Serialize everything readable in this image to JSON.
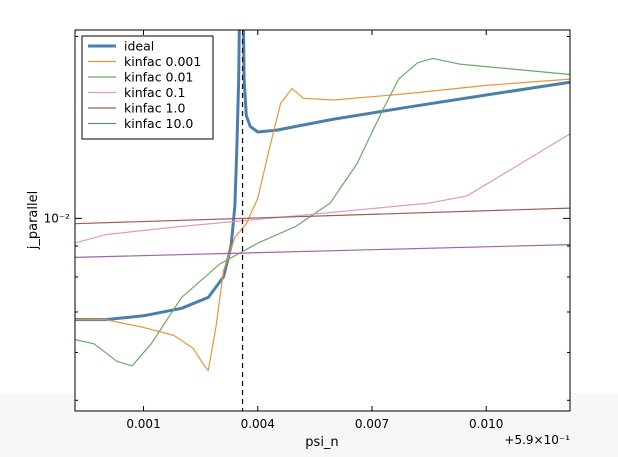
{
  "chart_data": {
    "type": "line",
    "title": "",
    "xlabel": "psi_n",
    "ylabel": "j_parallel",
    "x_offset_label": "+5.9×10⁻¹",
    "xlim": [
      -0.0008,
      0.0122
    ],
    "ylim": [
      0.0048,
      0.0205
    ],
    "yscale": "log",
    "grid": false,
    "legend_position": "top-left",
    "x_ticks": [
      {
        "value": 0.001,
        "label": "0.001"
      },
      {
        "value": 0.004,
        "label": "0.004"
      },
      {
        "value": 0.007,
        "label": "0.007"
      },
      {
        "value": 0.01,
        "label": "0.010"
      }
    ],
    "y_ticks": [
      {
        "value": 0.01,
        "label": "10⁻²"
      }
    ],
    "vline": {
      "x": 0.0036,
      "style": "dashed",
      "color": "#000000"
    },
    "series": [
      {
        "name": "ideal",
        "color": "#4a7fad",
        "width": 3,
        "x": [
          -0.0008,
          0,
          0.001,
          0.002,
          0.0027,
          0.0031,
          0.0033,
          0.0034,
          0.00345,
          0.0035,
          0.00352,
          0.00362,
          0.00364,
          0.0037,
          0.0038,
          0.004,
          0.0045,
          0.006,
          0.008,
          0.01,
          0.0122
        ],
        "y": [
          0.0068,
          0.0068,
          0.0069,
          0.0071,
          0.0074,
          0.008,
          0.009,
          0.0105,
          0.013,
          0.017,
          0.022,
          0.022,
          0.017,
          0.0148,
          0.0142,
          0.0139,
          0.014,
          0.0146,
          0.0153,
          0.016,
          0.0168
        ]
      },
      {
        "name": "kinfac 0.001",
        "color": "#e8953a",
        "width": 1.2,
        "x": [
          -0.0008,
          0,
          0.001,
          0.0018,
          0.0023,
          0.0026,
          0.0027,
          0.0029,
          0.0031,
          0.0034,
          0.0037,
          0.004,
          0.0043,
          0.0046,
          0.0049,
          0.0052,
          0.006,
          0.008,
          0.01,
          0.0122
        ],
        "y": [
          0.0068,
          0.0068,
          0.0066,
          0.0064,
          0.0061,
          0.0057,
          0.0056,
          0.0066,
          0.0082,
          0.0093,
          0.0098,
          0.0108,
          0.013,
          0.0155,
          0.0164,
          0.0158,
          0.0157,
          0.0161,
          0.0166,
          0.017
        ]
      },
      {
        "name": "kinfac 0.01",
        "color": "#6aa86a",
        "width": 1.2,
        "x": [
          -0.0008,
          -0.0003,
          0.0003,
          0.0007,
          0.0012,
          0.002,
          0.003,
          0.004,
          0.005,
          0.0059,
          0.0066,
          0.0073,
          0.0077,
          0.0082,
          0.0086,
          0.0093,
          0.0122
        ],
        "y": [
          0.0063,
          0.0062,
          0.0058,
          0.0057,
          0.0062,
          0.0074,
          0.0084,
          0.0091,
          0.0097,
          0.0106,
          0.0123,
          0.0152,
          0.017,
          0.0181,
          0.0184,
          0.018,
          0.0173
        ]
      },
      {
        "name": "kinfac 0.1",
        "color": "#e099c1",
        "width": 1.2,
        "x": [
          -0.0008,
          0,
          0.002,
          0.005,
          0.0085,
          0.0095,
          0.0122
        ],
        "y": [
          0.0091,
          0.0094,
          0.0097,
          0.0101,
          0.0106,
          0.0109,
          0.0138
        ]
      },
      {
        "name": "kinfac 1.0",
        "color": "#9b5f4e",
        "width": 1.2,
        "x": [
          -0.0008,
          0.0122
        ],
        "y": [
          0.0098,
          0.0104
        ]
      },
      {
        "name": "kinfac 10.0",
        "color": "#55916a",
        "width": 1.2,
        "x": [],
        "y": []
      },
      {
        "name": "",
        "color": "#9e66ad",
        "width": 1.2,
        "x": [
          -0.0008,
          0.0122
        ],
        "y": [
          0.00862,
          0.00905
        ]
      }
    ]
  }
}
